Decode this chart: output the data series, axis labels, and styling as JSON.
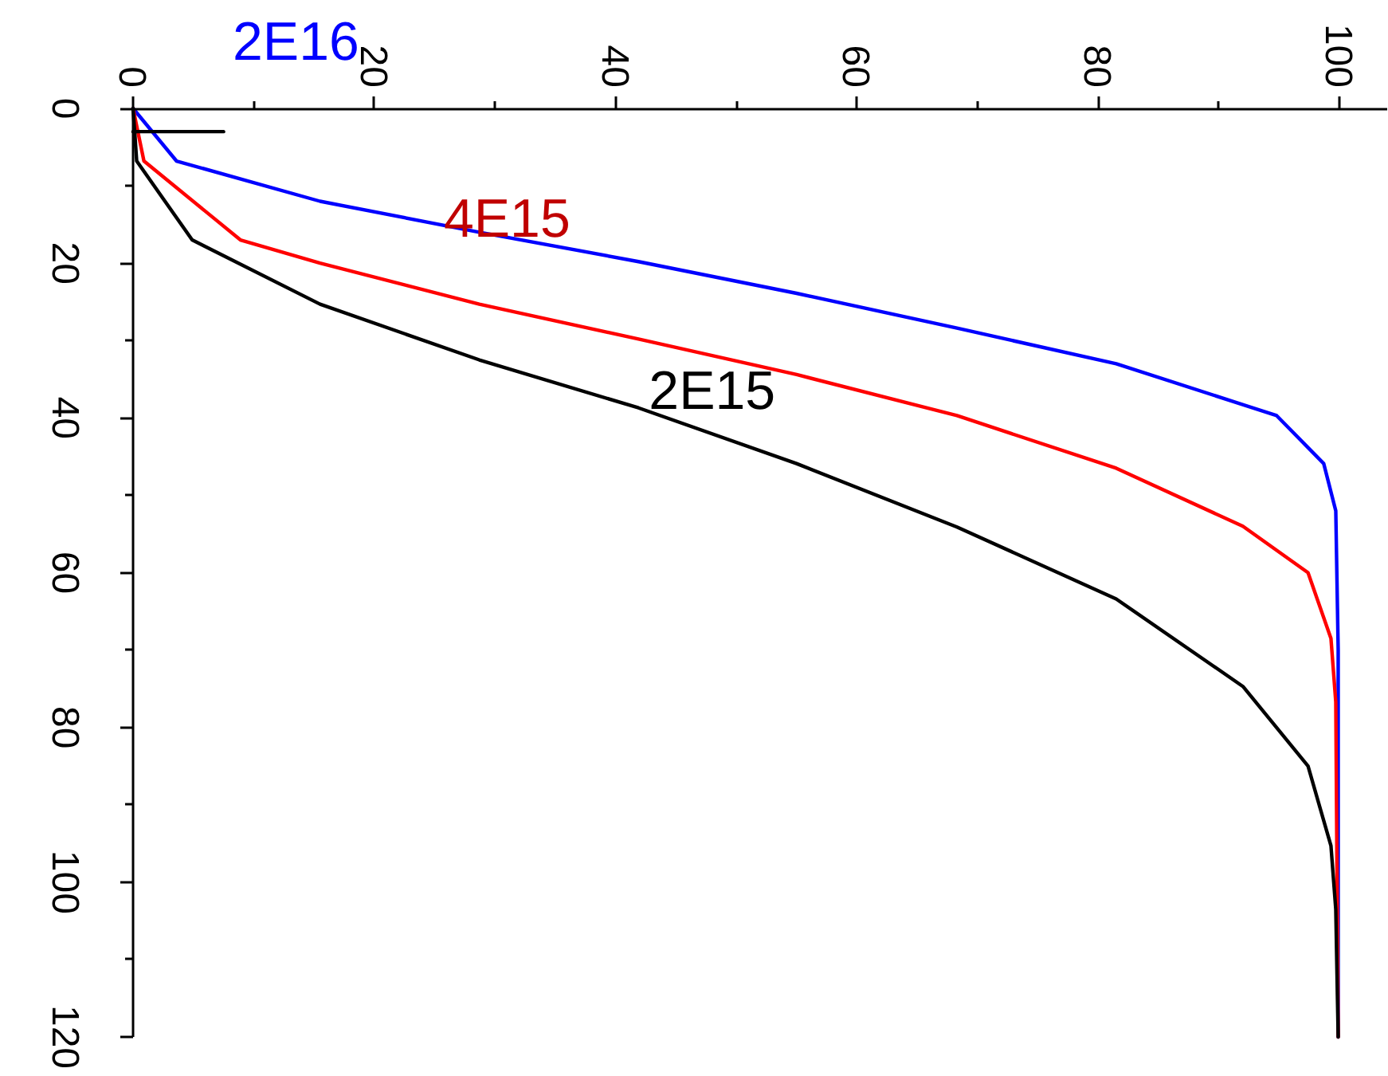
{
  "chart_data": {
    "type": "line",
    "xlim": [
      0,
      104
    ],
    "ylim": [
      120,
      0
    ],
    "xticks": [
      0,
      {
        "value": 10,
        "label": null
      },
      20,
      {
        "value": 30,
        "label": null
      },
      40,
      {
        "value": 50,
        "label": null
      },
      60,
      {
        "value": 70,
        "label": null
      },
      80,
      {
        "value": 90,
        "label": null
      },
      100
    ],
    "yticks": [
      0,
      {
        "value": 10,
        "label": null
      },
      20,
      {
        "value": 30,
        "label": null
      },
      40,
      {
        "value": 50,
        "label": null
      },
      60,
      {
        "value": 70,
        "label": null
      },
      80,
      {
        "value": 90,
        "label": null
      },
      100,
      {
        "value": 110,
        "label": null
      },
      120
    ],
    "grid": false,
    "line_style": "solid",
    "marker": "none",
    "series": [
      {
        "color": "#0000ff",
        "x": [
          0,
          3.6,
          15.5,
          28.7,
          41.9,
          55,
          68.3,
          81.5,
          94.8,
          98.7,
          99.7,
          99.9,
          99.9
        ],
        "values": [
          0,
          6.8,
          12,
          16,
          19.8,
          23.9,
          28.4,
          33,
          39.7,
          45.9,
          52,
          70,
          120
        ]
      },
      {
        "color": "#ff0000",
        "x": [
          0,
          0.9,
          8.9,
          15.5,
          28.7,
          41.9,
          55,
          68.3,
          81.5,
          92,
          97.4,
          99.3,
          99.7,
          99.9
        ],
        "values": [
          0,
          6.8,
          17,
          20,
          25.3,
          29.8,
          34.4,
          39.7,
          46.5,
          54,
          60,
          68.5,
          76.7,
          120
        ]
      },
      {
        "color": "#000000",
        "x": [
          0,
          0.3,
          4.9,
          15.5,
          28.7,
          41.9,
          55,
          68.3,
          81.5,
          92,
          97.4,
          99.3,
          99.7,
          99.9
        ],
        "values": [
          0,
          6.8,
          17,
          25.3,
          32.5,
          38.7,
          45.9,
          54.1,
          63.4,
          74.7,
          85,
          95.3,
          103.5,
          120
        ]
      },
      {
        "color": "#000000",
        "x": [
          0,
          7.5
        ],
        "values": [
          3,
          3
        ]
      }
    ],
    "annotations": [
      "2E16",
      "4E15",
      "2E15"
    ]
  }
}
